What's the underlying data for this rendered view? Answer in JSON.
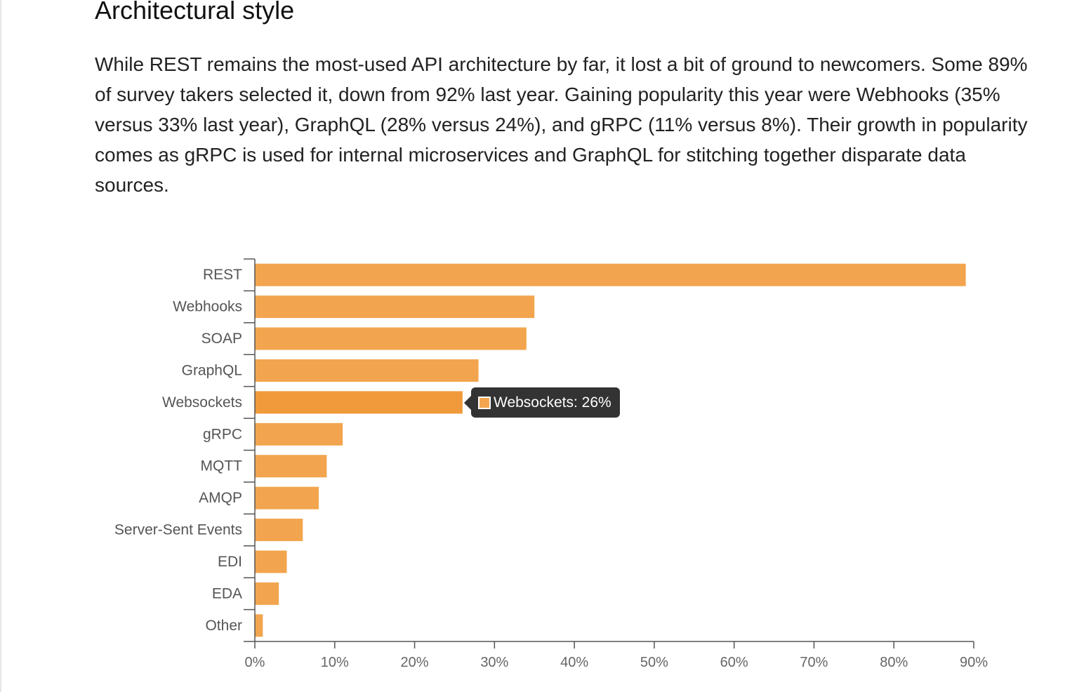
{
  "article": {
    "heading": "Architectural style",
    "paragraph": "While REST remains the most-used API architecture by far, it lost a bit of ground to newcomers. Some 89% of survey takers selected it, down from 92% last year. Gaining popularity this year were Webhooks (35% versus 33% last year), GraphQL (28% versus 24%), and gRPC (11% versus 8%). Their growth in popularity comes as gRPC is used for internal microservices and GraphQL for stitching together disparate data sources."
  },
  "chart_data": {
    "type": "bar",
    "orientation": "horizontal",
    "categories": [
      "REST",
      "Webhooks",
      "SOAP",
      "GraphQL",
      "Websockets",
      "gRPC",
      "MQTT",
      "AMQP",
      "Server-Sent Events",
      "EDI",
      "EDA",
      "Other"
    ],
    "values": [
      89,
      35,
      34,
      28,
      26,
      11,
      9,
      8,
      6,
      4,
      3,
      1
    ],
    "value_unit": "%",
    "xlim": [
      0,
      90
    ],
    "x_ticks": [
      "0%",
      "10%",
      "20%",
      "30%",
      "40%",
      "50%",
      "60%",
      "70%",
      "80%",
      "90%"
    ],
    "x_tick_values": [
      0,
      10,
      20,
      30,
      40,
      50,
      60,
      70,
      80,
      90
    ],
    "title": "",
    "xlabel": "",
    "ylabel": "",
    "grid": false,
    "bar_color": "#f2a54e",
    "highlight_color": "#f09a3b",
    "highlighted_category": "Websockets",
    "tooltip": {
      "text": "Websockets: 26%"
    }
  }
}
